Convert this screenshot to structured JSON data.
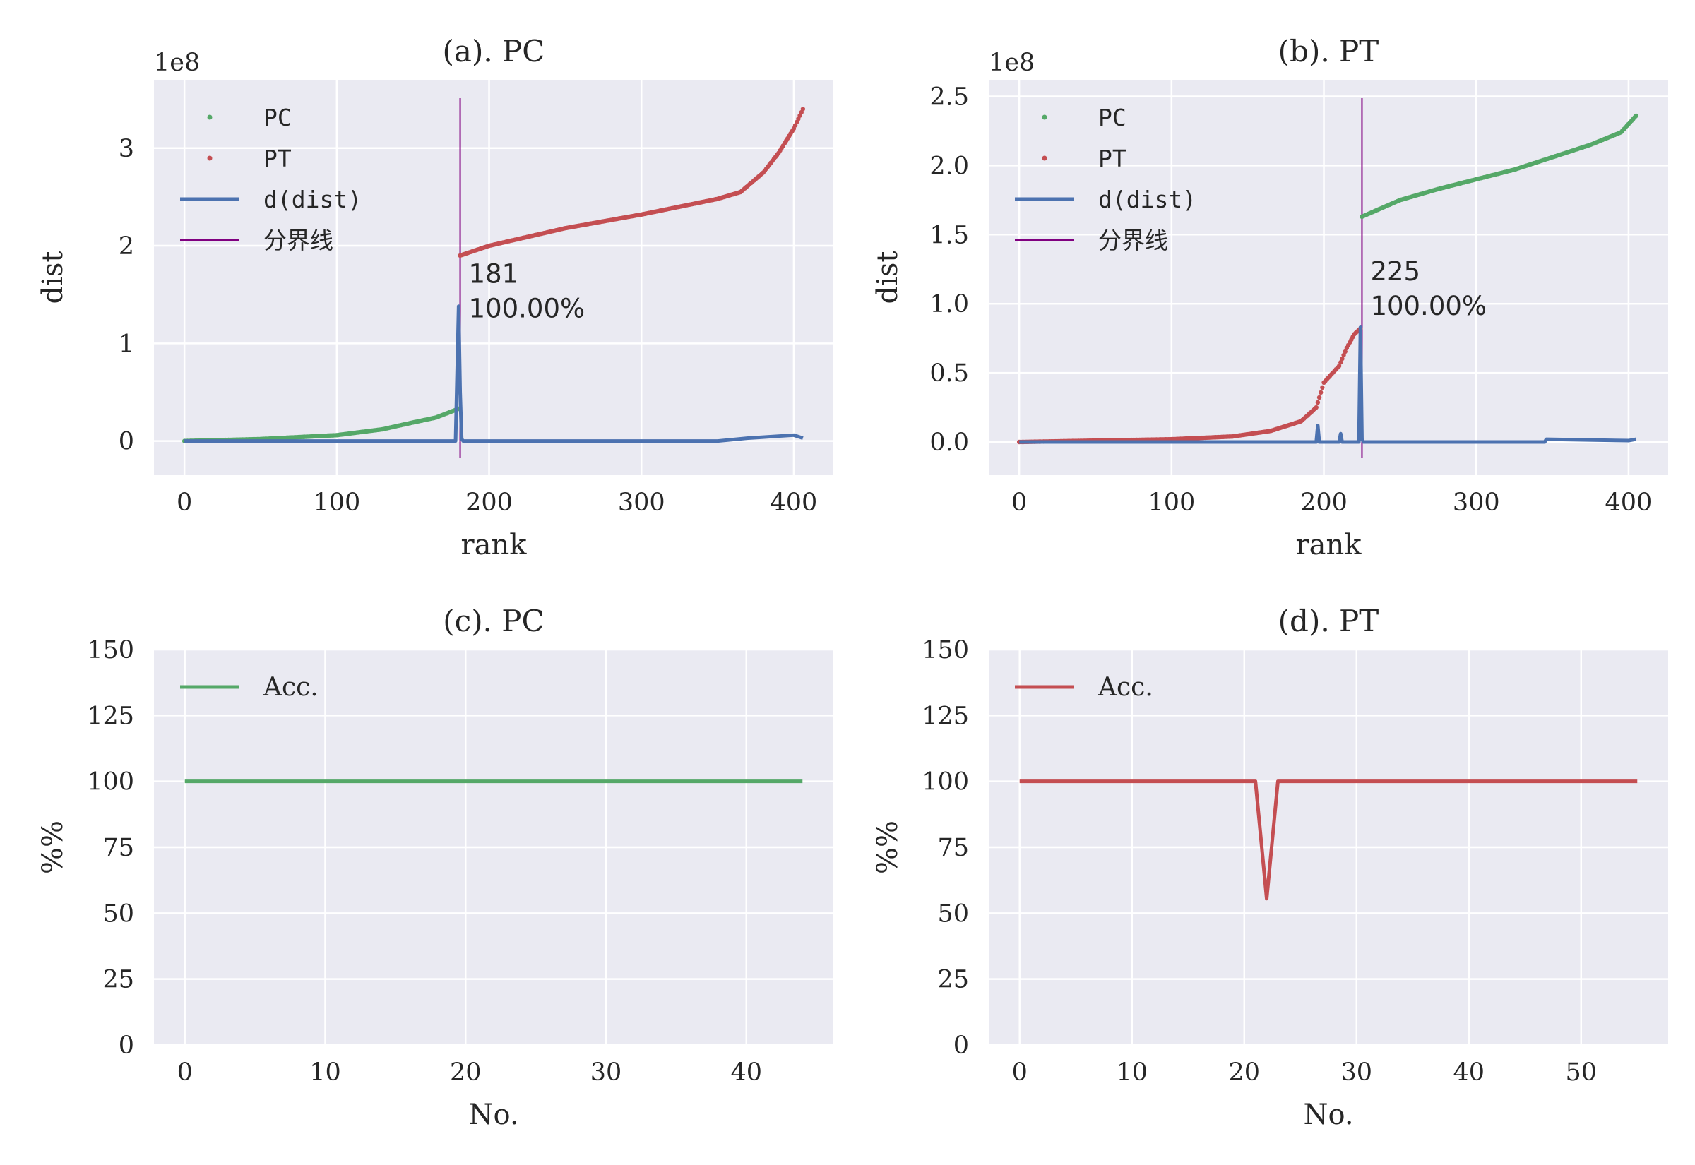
{
  "chart_data": [
    {
      "id": "a",
      "type": "scatter",
      "title": "(a). PC",
      "xlabel": "rank",
      "ylabel": "dist",
      "y_offset_text": "1e8",
      "xlim": [
        -20,
        426
      ],
      "ylim": [
        -0.35,
        3.7
      ],
      "x_ticks": [
        0,
        100,
        200,
        300,
        400
      ],
      "y_ticks": [
        0,
        1,
        2,
        3
      ],
      "y_tick_labels": [
        "0",
        "1",
        "2",
        "3"
      ],
      "grid": true,
      "legend": {
        "position": "upper-left",
        "entries": [
          "PC",
          "PT",
          "d(dist)",
          "分界线"
        ]
      },
      "series": [
        {
          "name": "PC",
          "kind": "points",
          "color": "#55a868",
          "x": [
            0,
            50,
            100,
            130,
            150,
            165,
            175,
            180
          ],
          "y": [
            0.0,
            0.02,
            0.06,
            0.12,
            0.19,
            0.24,
            0.3,
            0.33
          ]
        },
        {
          "name": "PT",
          "kind": "points",
          "color": "#c44e52",
          "x": [
            181,
            200,
            250,
            300,
            350,
            365,
            380,
            390,
            400,
            406
          ],
          "y": [
            1.9,
            2.0,
            2.18,
            2.32,
            2.48,
            2.55,
            2.75,
            2.95,
            3.2,
            3.4
          ]
        },
        {
          "name": "d(dist)",
          "kind": "line",
          "color": "#4c72b0",
          "x": [
            0,
            100,
            178,
            180,
            181,
            182,
            183,
            250,
            350,
            370,
            380,
            390,
            400,
            406
          ],
          "y": [
            0.0,
            0.0,
            0.0,
            1.38,
            0.5,
            0.02,
            0.0,
            0.0,
            0.0,
            0.03,
            0.04,
            0.05,
            0.06,
            0.03
          ]
        }
      ],
      "boundary": {
        "name": "分界线",
        "x": 181,
        "color": "#800080"
      },
      "annotation": [
        "181",
        "100.00%"
      ],
      "annotation_at": [
        181,
        1.62
      ]
    },
    {
      "id": "b",
      "type": "scatter",
      "title": "(b). PT",
      "xlabel": "rank",
      "ylabel": "dist",
      "y_offset_text": "1e8",
      "xlim": [
        -20,
        426
      ],
      "ylim": [
        -0.24,
        2.62
      ],
      "x_ticks": [
        0,
        100,
        200,
        300,
        400
      ],
      "y_ticks": [
        0.0,
        0.5,
        1.0,
        1.5,
        2.0,
        2.5
      ],
      "y_tick_labels": [
        "0.0",
        "0.5",
        "1.0",
        "1.5",
        "2.0",
        "2.5"
      ],
      "grid": true,
      "legend": {
        "position": "upper-left",
        "entries": [
          "PC",
          "PT",
          "d(dist)",
          "分界线"
        ]
      },
      "series": [
        {
          "name": "PC",
          "kind": "points",
          "color": "#55a868",
          "x": [
            225,
            250,
            275,
            300,
            325,
            350,
            375,
            395,
            405
          ],
          "y": [
            1.63,
            1.75,
            1.83,
            1.9,
            1.97,
            2.06,
            2.15,
            2.24,
            2.36
          ]
        },
        {
          "name": "PT",
          "kind": "points",
          "color": "#c44e52",
          "x": [
            0,
            50,
            100,
            140,
            165,
            185,
            195,
            200,
            210,
            215,
            220,
            224
          ],
          "y": [
            0.0,
            0.01,
            0.02,
            0.04,
            0.08,
            0.15,
            0.25,
            0.43,
            0.55,
            0.68,
            0.78,
            0.82
          ]
        },
        {
          "name": "d(dist)",
          "kind": "line",
          "color": "#4c72b0",
          "x": [
            0,
            100,
            190,
            195,
            196,
            197,
            200,
            210,
            211,
            212,
            220,
            223,
            224,
            225,
            226,
            300,
            345,
            346,
            400,
            405
          ],
          "y": [
            0.0,
            0.0,
            0.0,
            0.0,
            0.12,
            0.0,
            0.0,
            0.0,
            0.06,
            0.0,
            0.0,
            0.0,
            0.83,
            0.02,
            0.0,
            0.0,
            0.0,
            0.02,
            0.01,
            0.02
          ]
        }
      ],
      "boundary": {
        "name": "分界线",
        "x": 225,
        "color": "#800080"
      },
      "annotation": [
        "225",
        "100.00%"
      ],
      "annotation_at": [
        225,
        1.17
      ]
    },
    {
      "id": "c",
      "type": "line",
      "title": "(c). PC",
      "xlabel": "No.",
      "ylabel": "%%",
      "xlim": [
        -2.2,
        46.2
      ],
      "ylim": [
        0,
        150
      ],
      "x_ticks": [
        0,
        10,
        20,
        30,
        40
      ],
      "y_ticks": [
        0,
        25,
        50,
        75,
        100,
        125,
        150
      ],
      "y_tick_labels": [
        "0",
        "25",
        "50",
        "75",
        "100",
        "125",
        "150"
      ],
      "grid": true,
      "legend": {
        "position": "upper-left",
        "entries": [
          "Acc."
        ]
      },
      "series": [
        {
          "name": "Acc.",
          "kind": "line",
          "color": "#55a868",
          "x": [
            0,
            44
          ],
          "y": [
            100,
            100
          ]
        }
      ]
    },
    {
      "id": "d",
      "type": "line",
      "title": "(d). PT",
      "xlabel": "No.",
      "ylabel": "%%",
      "xlim": [
        -2.75,
        57.75
      ],
      "ylim": [
        0,
        150
      ],
      "x_ticks": [
        0,
        10,
        20,
        30,
        40,
        50
      ],
      "y_ticks": [
        0,
        25,
        50,
        75,
        100,
        125,
        150
      ],
      "y_tick_labels": [
        "0",
        "25",
        "50",
        "75",
        "100",
        "125",
        "150"
      ],
      "grid": true,
      "legend": {
        "position": "upper-left",
        "entries": [
          "Acc."
        ]
      },
      "series": [
        {
          "name": "Acc.",
          "kind": "line",
          "color": "#c44e52",
          "x": [
            0,
            21,
            22,
            23,
            55
          ],
          "y": [
            100,
            100,
            55.5,
            100,
            100
          ]
        }
      ]
    }
  ]
}
